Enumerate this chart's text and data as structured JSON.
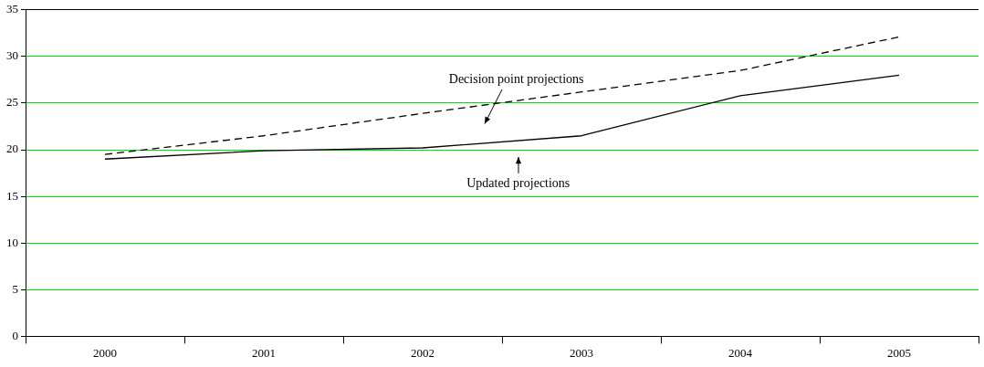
{
  "chart_data": {
    "type": "line",
    "categories": [
      "2000",
      "2001",
      "2002",
      "2003",
      "2004",
      "2005"
    ],
    "series": [
      {
        "color": "#000000",
        "line_style": "dashed",
        "values": [
          19.5,
          21.5,
          23.9,
          26.2,
          28.5,
          32.1
        ]
      },
      {
        "color": "#000000",
        "line_style": "solid",
        "values": [
          19.0,
          19.9,
          20.2,
          21.5,
          25.8,
          28.0
        ]
      }
    ],
    "ylim": [
      0,
      35
    ],
    "yticks": [
      0,
      5,
      10,
      15,
      20,
      25,
      30,
      35
    ],
    "grid": "y",
    "legend": false,
    "marker": "none",
    "annotations": [
      "Decision point projections",
      "Updated projections"
    ]
  }
}
